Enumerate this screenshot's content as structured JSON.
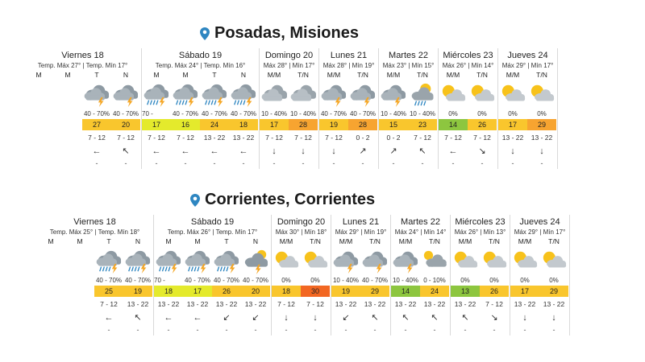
{
  "cities": [
    {
      "title": "Posadas, Misiones",
      "days": [
        {
          "name": "Viernes 18",
          "temps": "Temp. Máx 27° | Temp. Mín 17°",
          "cols": [
            {
              "period": "M",
              "icon": "none",
              "rain": "",
              "temp": "",
              "color": "",
              "wind": "",
              "arrow": "",
              "gust": ""
            },
            {
              "period": "M",
              "icon": "none",
              "rain": "",
              "temp": "",
              "color": "",
              "wind": "",
              "arrow": "",
              "gust": ""
            },
            {
              "period": "T",
              "icon": "storm",
              "rain": "40 - 70%",
              "temp": "27",
              "color": "#f9c62d",
              "wind": "7 - 12",
              "arrow": "←",
              "gust": "-"
            },
            {
              "period": "N",
              "icon": "storm",
              "rain": "40 - 70%",
              "temp": "20",
              "color": "#f9c62d",
              "wind": "7 - 12",
              "arrow": "↖",
              "gust": "-"
            }
          ]
        },
        {
          "name": "Sábado 19",
          "temps": "Temp. Máx 24° | Temp. Mín 16°",
          "cols": [
            {
              "period": "M",
              "icon": "storm-rain",
              "rain": "70 - 100%",
              "temp": "17",
              "color": "#e4ea2c",
              "wind": "7 - 12",
              "arrow": "←",
              "gust": "-"
            },
            {
              "period": "M",
              "icon": "storm-rain",
              "rain": "40 - 70%",
              "temp": "16",
              "color": "#e4ea2c",
              "wind": "7 - 12",
              "arrow": "←",
              "gust": "-"
            },
            {
              "period": "T",
              "icon": "storm-rain",
              "rain": "40 - 70%",
              "temp": "24",
              "color": "#f9c62d",
              "wind": "13 - 22",
              "arrow": "←",
              "gust": "-"
            },
            {
              "period": "N",
              "icon": "storm-rain",
              "rain": "40 - 70%",
              "temp": "18",
              "color": "#f9c62d",
              "wind": "13 - 22",
              "arrow": "←",
              "gust": "-"
            }
          ]
        },
        {
          "name": "Domingo 20",
          "temps": "Máx 28° | Mín 17°",
          "cols": [
            {
              "period": "M/M",
              "icon": "cloudy",
              "rain": "10 - 40%",
              "temp": "17",
              "color": "#f9c62d",
              "wind": "7 - 12",
              "arrow": "↓",
              "gust": "-"
            },
            {
              "period": "T/N",
              "icon": "cloudy",
              "rain": "10 - 40%",
              "temp": "28",
              "color": "#f7a430",
              "wind": "7 - 12",
              "arrow": "↓",
              "gust": "-"
            }
          ]
        },
        {
          "name": "Lunes 21",
          "temps": "Máx 28° | Mín 19°",
          "cols": [
            {
              "period": "M/M",
              "icon": "storm",
              "rain": "40 - 70%",
              "temp": "19",
              "color": "#f9c62d",
              "wind": "7 - 12",
              "arrow": "↓",
              "gust": "-"
            },
            {
              "period": "T/N",
              "icon": "storm",
              "rain": "40 - 70%",
              "temp": "28",
              "color": "#f7a430",
              "wind": "0 - 2",
              "arrow": "↗",
              "gust": "-"
            }
          ]
        },
        {
          "name": "Martes 22",
          "temps": "Máx 23° | Mín 15°",
          "cols": [
            {
              "period": "M/M",
              "icon": "storm",
              "rain": "10 - 40%",
              "temp": "15",
              "color": "#f9c62d",
              "wind": "0 - 2",
              "arrow": "↗",
              "gust": "-"
            },
            {
              "period": "T/N",
              "icon": "sun-rain",
              "rain": "10 - 40%",
              "temp": "23",
              "color": "#f9c62d",
              "wind": "7 - 12",
              "arrow": "↖",
              "gust": "-"
            }
          ]
        },
        {
          "name": "Miércoles 23",
          "temps": "Máx 26° | Mín 14°",
          "cols": [
            {
              "period": "M/M",
              "icon": "partly",
              "rain": "0%",
              "temp": "14",
              "color": "#8dc63f",
              "wind": "7 - 12",
              "arrow": "←",
              "gust": "-"
            },
            {
              "period": "T/N",
              "icon": "partly",
              "rain": "0%",
              "temp": "26",
              "color": "#f9c62d",
              "wind": "7 - 12",
              "arrow": "↘",
              "gust": "-"
            }
          ]
        },
        {
          "name": "Jueves 24",
          "temps": "Máx 29° | Mín 17°",
          "cols": [
            {
              "period": "M/M",
              "icon": "partly",
              "rain": "0%",
              "temp": "17",
              "color": "#f9c62d",
              "wind": "13 - 22",
              "arrow": "↓",
              "gust": "-"
            },
            {
              "period": "T/N",
              "icon": "partly",
              "rain": "0%",
              "temp": "29",
              "color": "#f7a430",
              "wind": "13 - 22",
              "arrow": "↓",
              "gust": "-"
            }
          ]
        }
      ]
    },
    {
      "title": "Corrientes, Corrientes",
      "days": [
        {
          "name": "Viernes 18",
          "temps": "Temp. Máx 25° | Temp. Mín 18°",
          "cols": [
            {
              "period": "M",
              "icon": "none",
              "rain": "",
              "temp": "",
              "color": "",
              "wind": "",
              "arrow": "",
              "gust": ""
            },
            {
              "period": "M",
              "icon": "none",
              "rain": "",
              "temp": "",
              "color": "",
              "wind": "",
              "arrow": "",
              "gust": ""
            },
            {
              "period": "T",
              "icon": "storm-rain",
              "rain": "40 - 70%",
              "temp": "25",
              "color": "#f9c62d",
              "wind": "7 - 12",
              "arrow": "←",
              "gust": "-"
            },
            {
              "period": "N",
              "icon": "storm-rain",
              "rain": "40 - 70%",
              "temp": "19",
              "color": "#f9c62d",
              "wind": "13 - 22",
              "arrow": "↖",
              "gust": "-"
            }
          ]
        },
        {
          "name": "Sábado 19",
          "temps": "Temp. Máx 26° | Temp. Mín 17°",
          "cols": [
            {
              "period": "M",
              "icon": "storm-rain",
              "rain": "70 - 100%",
              "temp": "18",
              "color": "#e4ea2c",
              "wind": "13 - 22",
              "arrow": "←",
              "gust": "-"
            },
            {
              "period": "M",
              "icon": "storm-rain",
              "rain": "40 - 70%",
              "temp": "17",
              "color": "#e4ea2c",
              "wind": "13 - 22",
              "arrow": "←",
              "gust": "-"
            },
            {
              "period": "T",
              "icon": "storm-rain",
              "rain": "40 - 70%",
              "temp": "26",
              "color": "#f9c62d",
              "wind": "13 - 22",
              "arrow": "↙",
              "gust": "-"
            },
            {
              "period": "N",
              "icon": "sun-storm",
              "rain": "40 - 70%",
              "temp": "20",
              "color": "#f9c62d",
              "wind": "13 - 22",
              "arrow": "↙",
              "gust": "-"
            }
          ]
        },
        {
          "name": "Domingo 20",
          "temps": "Máx 30° | Mín 18°",
          "cols": [
            {
              "period": "M/M",
              "icon": "partly",
              "rain": "0%",
              "temp": "18",
              "color": "#f9c62d",
              "wind": "7 - 12",
              "arrow": "↓",
              "gust": "-"
            },
            {
              "period": "T/N",
              "icon": "partly",
              "rain": "0%",
              "temp": "30",
              "color": "#f26722",
              "wind": "7 - 12",
              "arrow": "↓",
              "gust": "-"
            }
          ]
        },
        {
          "name": "Lunes 21",
          "temps": "Máx 29° | Mín 19°",
          "cols": [
            {
              "period": "M/M",
              "icon": "storm",
              "rain": "10 - 40%",
              "temp": "19",
              "color": "#f9c62d",
              "wind": "13 - 22",
              "arrow": "↙",
              "gust": "-"
            },
            {
              "period": "T/N",
              "icon": "storm",
              "rain": "40 - 70%",
              "temp": "29",
              "color": "#f9c62d",
              "wind": "13 - 22",
              "arrow": "↖",
              "gust": "-"
            }
          ]
        },
        {
          "name": "Martes 22",
          "temps": "Máx 24° | Mín 14°",
          "cols": [
            {
              "period": "M/M",
              "icon": "storm",
              "rain": "10 - 40%",
              "temp": "14",
              "color": "#8dc63f",
              "wind": "13 - 22",
              "arrow": "↖",
              "gust": "-"
            },
            {
              "period": "T/N",
              "icon": "cloudy-sun",
              "rain": "0 - 10%",
              "temp": "24",
              "color": "#f9c62d",
              "wind": "13 - 22",
              "arrow": "↖",
              "gust": "-"
            }
          ]
        },
        {
          "name": "Miércoles 23",
          "temps": "Máx 26° | Mín 13°",
          "cols": [
            {
              "period": "M/M",
              "icon": "partly",
              "rain": "0%",
              "temp": "13",
              "color": "#8dc63f",
              "wind": "13 - 22",
              "arrow": "↖",
              "gust": "-"
            },
            {
              "period": "T/N",
              "icon": "partly",
              "rain": "0%",
              "temp": "26",
              "color": "#f9c62d",
              "wind": "7 - 12",
              "arrow": "↘",
              "gust": "-"
            }
          ]
        },
        {
          "name": "Jueves 24",
          "temps": "Máx 29° | Mín 17°",
          "cols": [
            {
              "period": "M/M",
              "icon": "partly",
              "rain": "0%",
              "temp": "17",
              "color": "#f9c62d",
              "wind": "13 - 22",
              "arrow": "↓",
              "gust": "-"
            },
            {
              "period": "T/N",
              "icon": "partly",
              "rain": "0%",
              "temp": "29",
              "color": "#f9c62d",
              "wind": "13 - 22",
              "arrow": "↓",
              "gust": "-"
            }
          ]
        }
      ]
    }
  ]
}
